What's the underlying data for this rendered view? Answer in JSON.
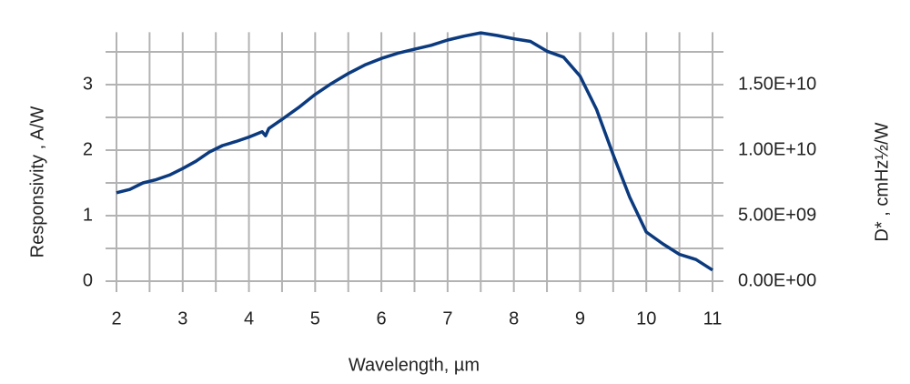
{
  "chart_data": {
    "type": "line",
    "xlabel": "Wavelength, µm",
    "ylabel": "Responsivity , A/W",
    "y2label": "D* , cmHz½/W",
    "x": [
      2.0,
      2.2,
      2.4,
      2.6,
      2.8,
      3.0,
      3.2,
      3.4,
      3.6,
      3.8,
      4.0,
      4.2,
      4.25,
      4.3,
      4.5,
      4.75,
      5.0,
      5.25,
      5.5,
      5.75,
      6.0,
      6.25,
      6.5,
      6.75,
      7.0,
      7.25,
      7.5,
      7.75,
      8.0,
      8.25,
      8.5,
      8.75,
      9.0,
      9.25,
      9.5,
      9.75,
      10.0,
      10.25,
      10.5,
      10.75,
      11.0
    ],
    "series": [
      {
        "name": "Responsivity",
        "color": "#0b3a7e",
        "values": [
          1.35,
          1.4,
          1.5,
          1.55,
          1.62,
          1.72,
          1.83,
          1.97,
          2.07,
          2.13,
          2.2,
          2.28,
          2.22,
          2.33,
          2.47,
          2.65,
          2.85,
          3.02,
          3.17,
          3.3,
          3.4,
          3.48,
          3.54,
          3.6,
          3.68,
          3.74,
          3.79,
          3.75,
          3.7,
          3.66,
          3.51,
          3.42,
          3.13,
          2.62,
          1.93,
          1.28,
          0.75,
          0.57,
          0.41,
          0.33,
          0.17
        ]
      }
    ],
    "xlim": [
      2,
      11
    ],
    "xticks": [
      2,
      3,
      4,
      5,
      6,
      7,
      8,
      9,
      10,
      11
    ],
    "x_minor_ticks": [
      2.5,
      3.5,
      4.5,
      5.5,
      6.5,
      7.5,
      8.5,
      9.5,
      10.5
    ],
    "ylim": [
      0,
      3.8
    ],
    "yticks": [
      0,
      1,
      2,
      3
    ],
    "y_minor_ticks": [
      0.5,
      1.5,
      2.5,
      3.5
    ],
    "y2lim": [
      0,
      19000000000
    ],
    "y2ticks": [
      {
        "value": 0,
        "label": "0.00E+00"
      },
      {
        "value": 5000000000,
        "label": "5.00E+09"
      },
      {
        "value": 10000000000,
        "label": "1.00E+10"
      },
      {
        "value": 15000000000,
        "label": "1.50E+10"
      }
    ],
    "grid": true
  }
}
